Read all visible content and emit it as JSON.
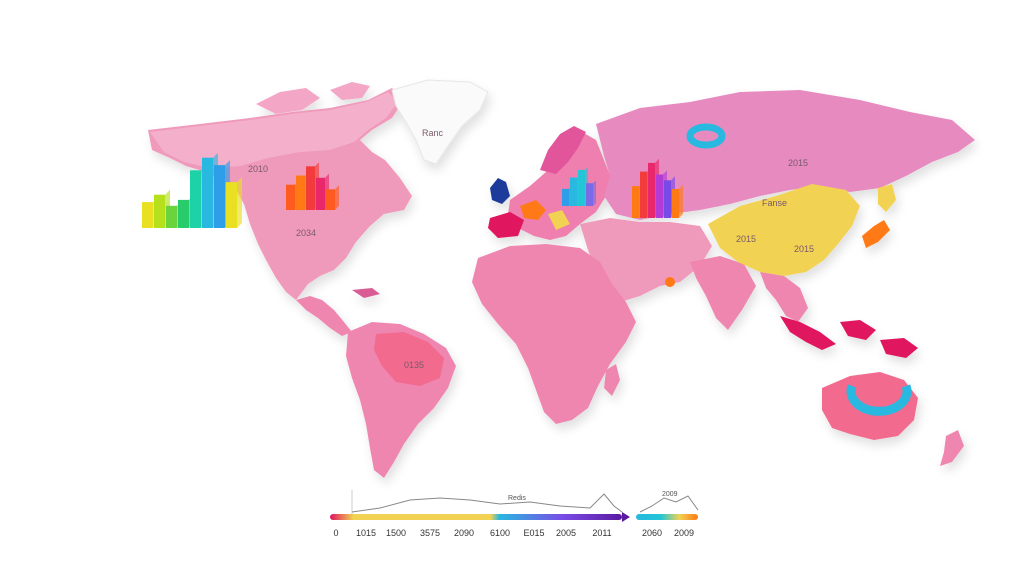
{
  "map": {
    "region_labels": [
      {
        "id": "na-1",
        "text": "2010"
      },
      {
        "id": "na-2",
        "text": "2034"
      },
      {
        "id": "ru",
        "text": "2015"
      },
      {
        "id": "cn-1",
        "text": "2015"
      },
      {
        "id": "cn-2",
        "text": "2015"
      },
      {
        "id": "cn-3",
        "text": "Fanse"
      },
      {
        "id": "sa",
        "text": "0135"
      },
      {
        "id": "gl",
        "text": "Ranc"
      }
    ],
    "colors": {
      "land": "#ef86b0",
      "land_light": "#f4a6c6",
      "land_dark": "#d95c94",
      "greenland": "#ffffff",
      "china": "#f1d253",
      "accent_red": "#e0125f",
      "ocean": "#ffffff"
    }
  },
  "bar_groups": [
    {
      "id": "north-america",
      "colors": [
        "#e8e020",
        "#b6e01c",
        "#6bd43c",
        "#28cc6a",
        "#1ed2a8",
        "#29b8e0",
        "#2f9ee8"
      ],
      "values": [
        0.35,
        0.45,
        0.3,
        0.38,
        0.78,
        0.95,
        0.85,
        0.62
      ]
    },
    {
      "id": "canada",
      "colors": [
        "#ff5a1f",
        "#ff7a14",
        "#f23c3c",
        "#e8286a"
      ],
      "values": [
        0.55,
        0.75,
        0.95,
        0.7,
        0.45
      ]
    },
    {
      "id": "europe",
      "colors": [
        "#2f9ee8",
        "#29b8e0",
        "#22c6d6",
        "#7a6ae6"
      ],
      "values": [
        0.45,
        0.75,
        0.95,
        0.6
      ]
    },
    {
      "id": "asia",
      "colors": [
        "#ff7a14",
        "#f23c3c",
        "#e8286a",
        "#b43cd6",
        "#7a4ae6"
      ],
      "values": [
        0.55,
        0.8,
        0.95,
        0.75,
        0.65,
        0.5
      ]
    }
  ],
  "timeline": {
    "ticks": [
      "0",
      "1015",
      "1500",
      "3575",
      "2090",
      "6100",
      "E015",
      "2005",
      "2011"
    ],
    "title": "Redis",
    "gradient": [
      "#e0125f",
      "#f1d253",
      "#f1d253",
      "#29b8e0",
      "#7a4ae6",
      "#5a1aa0"
    ]
  },
  "timeline_small": {
    "ticks": [
      "2060",
      "2009"
    ],
    "title": "2009",
    "gradient": [
      "#29b8e0",
      "#22c6d6",
      "#f1d253",
      "#ff7a14"
    ]
  }
}
